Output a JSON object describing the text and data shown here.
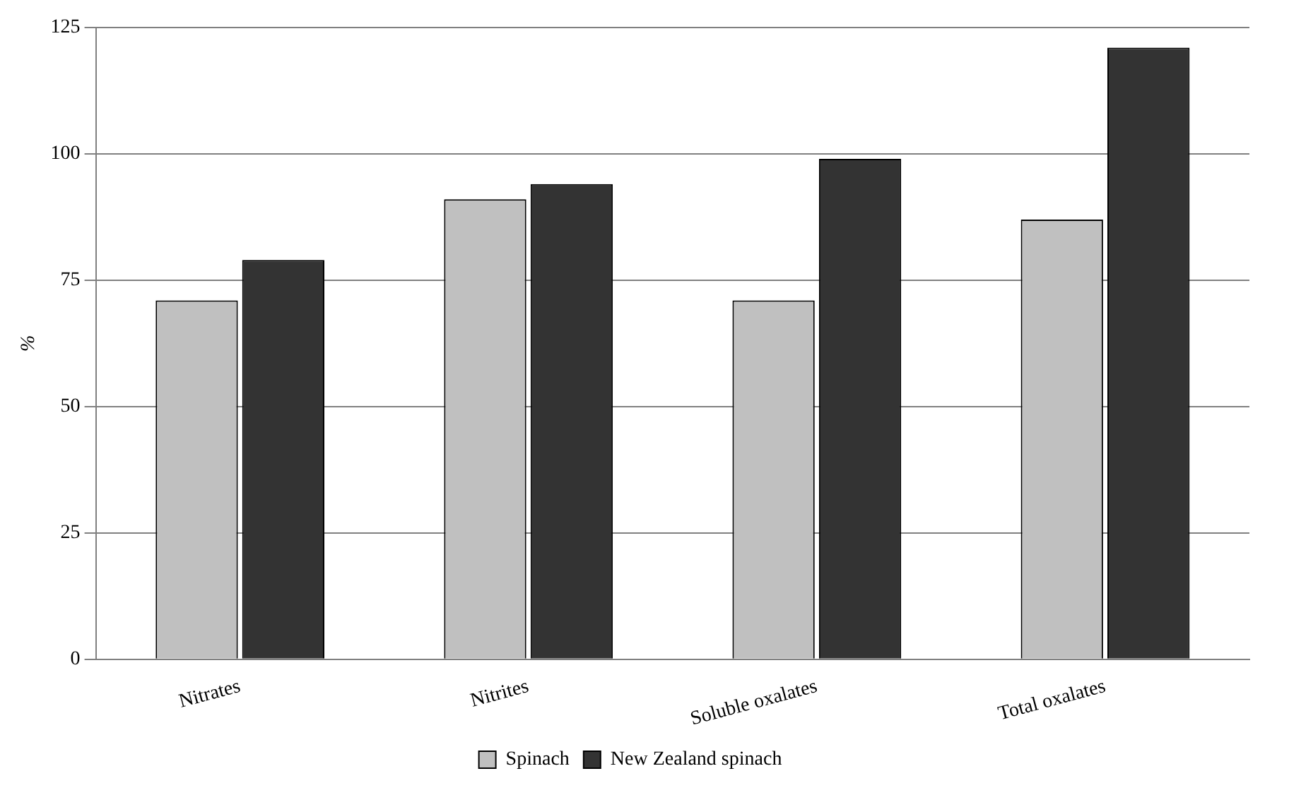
{
  "chart_data": {
    "type": "bar",
    "ylabel": "%",
    "categories": [
      "Nitrates",
      "Nitrites",
      "Soluble oxalates",
      "Total oxalates"
    ],
    "series": [
      {
        "name": "Spinach",
        "color": "#c0c0c0",
        "values": [
          71,
          91,
          71,
          87
        ]
      },
      {
        "name": "New Zealand spinach",
        "color": "#333333",
        "values": [
          79,
          94,
          99,
          121
        ]
      }
    ],
    "ylim": [
      0,
      125
    ],
    "yticks": [
      0,
      25,
      50,
      75,
      100,
      125
    ],
    "grid": "y",
    "legend": "bottom"
  }
}
